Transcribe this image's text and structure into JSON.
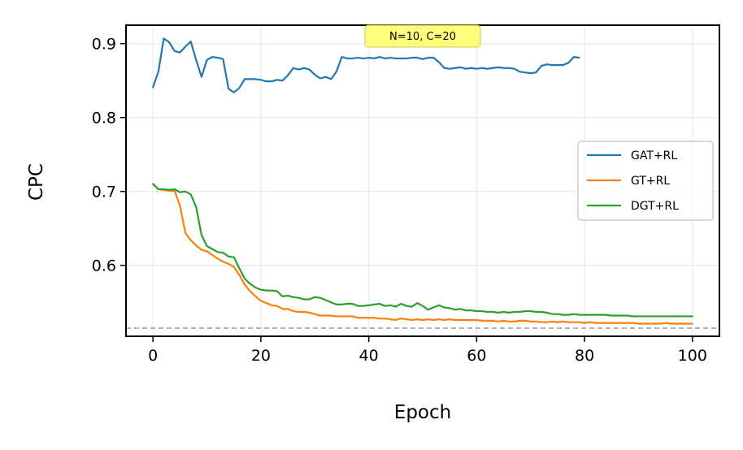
{
  "chart_data": {
    "type": "line",
    "xlabel": "Epoch",
    "ylabel": "CPC",
    "xlim": [
      -5,
      105
    ],
    "ylim": [
      0.504,
      0.925
    ],
    "xticks": [
      0,
      20,
      40,
      60,
      80,
      100
    ],
    "yticks": [
      0.6,
      0.7,
      0.8,
      0.9
    ],
    "grid": true,
    "legend_position": "center-right",
    "annotation": "N=10, C=20",
    "reference_line": {
      "y": 0.515,
      "style": "dashed",
      "color": "#999999"
    },
    "series": [
      {
        "name": "GAT+RL",
        "color": "#1f77b4",
        "x": [
          0,
          1,
          2,
          3,
          4,
          5,
          6,
          7,
          8,
          9,
          10,
          11,
          12,
          13,
          14,
          15,
          16,
          17,
          18,
          19,
          20,
          21,
          22,
          23,
          24,
          25,
          26,
          27,
          28,
          29,
          30,
          31,
          32,
          33,
          34,
          35,
          36,
          37,
          38,
          39,
          40,
          41,
          42,
          43,
          44,
          45,
          46,
          47,
          48,
          49,
          50,
          51,
          52,
          53,
          54,
          55,
          56,
          57,
          58,
          59,
          60,
          61,
          62,
          63,
          64,
          65,
          66,
          67,
          68,
          69,
          70,
          71,
          72,
          73,
          74,
          75,
          76,
          77,
          78,
          79
        ],
        "y": [
          0.841,
          0.862,
          0.907,
          0.902,
          0.89,
          0.888,
          0.896,
          0.903,
          0.878,
          0.855,
          0.878,
          0.882,
          0.881,
          0.879,
          0.839,
          0.834,
          0.84,
          0.852,
          0.852,
          0.852,
          0.851,
          0.849,
          0.849,
          0.851,
          0.85,
          0.857,
          0.867,
          0.865,
          0.867,
          0.865,
          0.858,
          0.853,
          0.855,
          0.852,
          0.862,
          0.882,
          0.88,
          0.88,
          0.881,
          0.88,
          0.881,
          0.88,
          0.882,
          0.88,
          0.881,
          0.88,
          0.88,
          0.88,
          0.881,
          0.881,
          0.879,
          0.881,
          0.881,
          0.875,
          0.867,
          0.866,
          0.867,
          0.868,
          0.866,
          0.867,
          0.866,
          0.867,
          0.866,
          0.867,
          0.868,
          0.867,
          0.867,
          0.866,
          0.862,
          0.861,
          0.86,
          0.861,
          0.87,
          0.872,
          0.871,
          0.871,
          0.871,
          0.874,
          0.882,
          0.881
        ]
      },
      {
        "name": "GT+RL",
        "color": "#ff7f0e",
        "x": [
          0,
          1,
          2,
          3,
          4,
          5,
          6,
          7,
          8,
          9,
          10,
          11,
          12,
          13,
          14,
          15,
          16,
          17,
          18,
          19,
          20,
          21,
          22,
          23,
          24,
          25,
          26,
          27,
          28,
          29,
          30,
          31,
          32,
          33,
          34,
          35,
          36,
          37,
          38,
          39,
          40,
          41,
          42,
          43,
          44,
          45,
          46,
          47,
          48,
          49,
          50,
          51,
          52,
          53,
          54,
          55,
          56,
          57,
          58,
          59,
          60,
          61,
          62,
          63,
          64,
          65,
          66,
          67,
          68,
          69,
          70,
          71,
          72,
          73,
          74,
          75,
          76,
          77,
          78,
          79,
          80,
          81,
          82,
          83,
          84,
          85,
          86,
          87,
          88,
          89,
          90,
          91,
          92,
          93,
          94,
          95,
          96,
          97,
          98,
          99,
          100
        ],
        "y": [
          0.71,
          0.703,
          0.702,
          0.701,
          0.701,
          0.681,
          0.644,
          0.634,
          0.627,
          0.621,
          0.619,
          0.614,
          0.609,
          0.605,
          0.602,
          0.598,
          0.587,
          0.574,
          0.565,
          0.558,
          0.552,
          0.549,
          0.546,
          0.545,
          0.541,
          0.541,
          0.538,
          0.537,
          0.537,
          0.536,
          0.534,
          0.532,
          0.532,
          0.532,
          0.531,
          0.531,
          0.531,
          0.531,
          0.529,
          0.529,
          0.529,
          0.529,
          0.528,
          0.528,
          0.527,
          0.526,
          0.528,
          0.527,
          0.526,
          0.527,
          0.526,
          0.527,
          0.526,
          0.527,
          0.526,
          0.527,
          0.526,
          0.526,
          0.526,
          0.526,
          0.526,
          0.525,
          0.525,
          0.525,
          0.524,
          0.525,
          0.524,
          0.524,
          0.525,
          0.525,
          0.524,
          0.524,
          0.523,
          0.523,
          0.524,
          0.523,
          0.524,
          0.523,
          0.523,
          0.523,
          0.522,
          0.523,
          0.522,
          0.522,
          0.522,
          0.522,
          0.522,
          0.522,
          0.522,
          0.522,
          0.521,
          0.521,
          0.521,
          0.521,
          0.521,
          0.522,
          0.521,
          0.521,
          0.521,
          0.521,
          0.521
        ]
      },
      {
        "name": "DGT+RL",
        "color": "#2ca02c",
        "x": [
          0,
          1,
          2,
          3,
          4,
          5,
          6,
          7,
          8,
          9,
          10,
          11,
          12,
          13,
          14,
          15,
          16,
          17,
          18,
          19,
          20,
          21,
          22,
          23,
          24,
          25,
          26,
          27,
          28,
          29,
          30,
          31,
          32,
          33,
          34,
          35,
          36,
          37,
          38,
          39,
          40,
          41,
          42,
          43,
          44,
          45,
          46,
          47,
          48,
          49,
          50,
          51,
          52,
          53,
          54,
          55,
          56,
          57,
          58,
          59,
          60,
          61,
          62,
          63,
          64,
          65,
          66,
          67,
          68,
          69,
          70,
          71,
          72,
          73,
          74,
          75,
          76,
          77,
          78,
          79,
          80,
          81,
          82,
          83,
          84,
          85,
          86,
          87,
          88,
          89,
          90,
          91,
          92,
          93,
          94,
          95,
          96,
          97,
          98,
          99,
          100
        ],
        "y": [
          0.71,
          0.703,
          0.703,
          0.702,
          0.703,
          0.699,
          0.7,
          0.696,
          0.679,
          0.641,
          0.626,
          0.622,
          0.618,
          0.617,
          0.612,
          0.611,
          0.596,
          0.582,
          0.575,
          0.57,
          0.567,
          0.566,
          0.566,
          0.565,
          0.558,
          0.559,
          0.557,
          0.556,
          0.554,
          0.554,
          0.557,
          0.556,
          0.553,
          0.55,
          0.547,
          0.547,
          0.548,
          0.548,
          0.545,
          0.545,
          0.546,
          0.547,
          0.548,
          0.545,
          0.546,
          0.544,
          0.548,
          0.545,
          0.544,
          0.549,
          0.545,
          0.54,
          0.543,
          0.546,
          0.543,
          0.542,
          0.54,
          0.541,
          0.539,
          0.539,
          0.538,
          0.538,
          0.537,
          0.537,
          0.536,
          0.537,
          0.536,
          0.537,
          0.537,
          0.538,
          0.538,
          0.537,
          0.537,
          0.536,
          0.534,
          0.534,
          0.533,
          0.533,
          0.534,
          0.533,
          0.533,
          0.533,
          0.533,
          0.533,
          0.533,
          0.532,
          0.532,
          0.532,
          0.532,
          0.531,
          0.531,
          0.531,
          0.531,
          0.531,
          0.531,
          0.531,
          0.531,
          0.531,
          0.531,
          0.531,
          0.531
        ]
      }
    ]
  }
}
